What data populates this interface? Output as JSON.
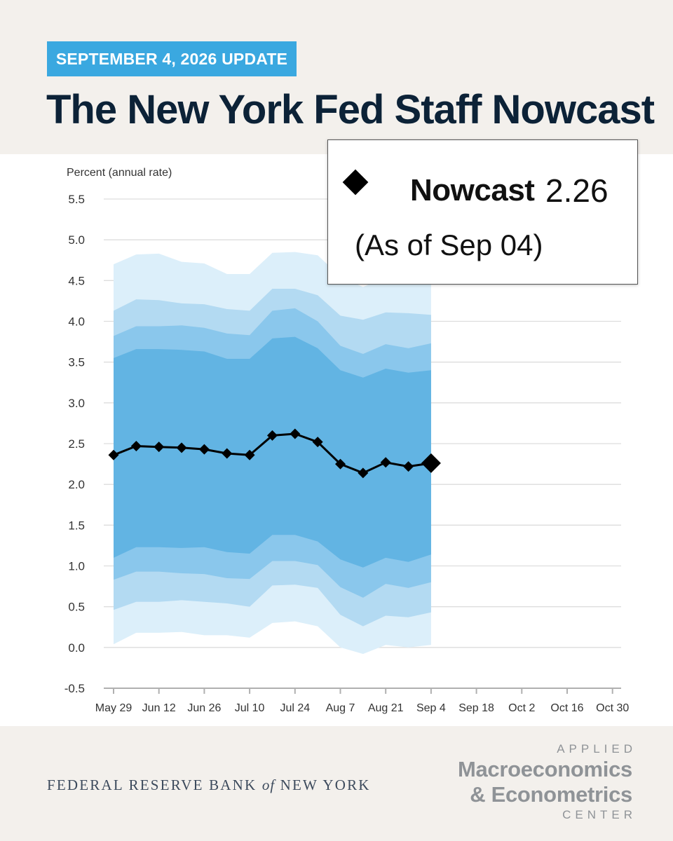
{
  "header": {
    "badge": "SEPTEMBER 4, 2026 UPDATE",
    "title": "The New York Fed Staff Nowcast"
  },
  "legend": {
    "series_label": "Nowcast",
    "value": "2.26",
    "as_of": "(As of Sep 04)"
  },
  "footer": {
    "bank_pre": "FEDERAL RESERVE BANK ",
    "bank_of": "of",
    "bank_post": " NEW YORK",
    "center_top": "APPLIED",
    "center_line1": "Macroeconomics",
    "center_line2": "& Econometrics",
    "center_bottom": "CENTER"
  },
  "colors": {
    "accent": "#3aa8e0",
    "title": "#0c2237",
    "band_inner": "#62b4e3",
    "band_mid": "#8ac7ec",
    "band_outer": "#b3daf2",
    "band_outermost": "#dceffa",
    "line": "#000000"
  },
  "chart_data": {
    "type": "line",
    "ylabel": "Percent (annual rate)",
    "ylim": [
      -0.5,
      5.5
    ],
    "yticks": [
      "5.5",
      "5.0",
      "4.5",
      "4.0",
      "3.5",
      "3.0",
      "2.5",
      "2.0",
      "1.5",
      "1.0",
      "0.5",
      "0.0",
      "-0.5"
    ],
    "ytick_values": [
      5.5,
      5.0,
      4.5,
      4.0,
      3.5,
      3.0,
      2.5,
      2.0,
      1.5,
      1.0,
      0.5,
      0.0,
      -0.5
    ],
    "xticks": [
      "May 29",
      "Jun 12",
      "Jun 26",
      "Jul 10",
      "Jul 24",
      "Aug 7",
      "Aug 21",
      "Sep 4",
      "Sep 18",
      "Oct 2",
      "Oct 16",
      "Oct 30"
    ],
    "x_domain": [
      "May 29",
      "Oct 30"
    ],
    "x": [
      "May 29",
      "Jun 5",
      "Jun 12",
      "Jun 19",
      "Jun 26",
      "Jul 3",
      "Jul 10",
      "Jul 17",
      "Jul 24",
      "Jul 31",
      "Aug 7",
      "Aug 14",
      "Aug 21",
      "Aug 28",
      "Sep 4"
    ],
    "series": [
      {
        "name": "Nowcast",
        "values": [
          2.36,
          2.47,
          2.46,
          2.45,
          2.43,
          2.38,
          2.36,
          2.6,
          2.62,
          2.52,
          2.25,
          2.14,
          2.27,
          2.22,
          2.26
        ]
      }
    ],
    "bands": {
      "upper_outer": [
        4.7,
        4.82,
        4.83,
        4.73,
        4.71,
        4.58,
        4.58,
        4.84,
        4.85,
        4.81,
        4.55,
        4.42,
        4.55,
        4.5,
        4.5
      ],
      "upper_mid": [
        4.13,
        4.27,
        4.26,
        4.22,
        4.21,
        4.15,
        4.13,
        4.4,
        4.4,
        4.32,
        4.07,
        4.02,
        4.11,
        4.1,
        4.08
      ],
      "upper_inner": [
        3.82,
        3.94,
        3.94,
        3.95,
        3.92,
        3.85,
        3.83,
        4.13,
        4.16,
        4.0,
        3.7,
        3.6,
        3.72,
        3.67,
        3.73
      ],
      "upper_core": [
        3.55,
        3.66,
        3.66,
        3.65,
        3.63,
        3.54,
        3.54,
        3.79,
        3.81,
        3.67,
        3.4,
        3.31,
        3.42,
        3.37,
        3.4
      ],
      "lower_core": [
        1.1,
        1.23,
        1.23,
        1.22,
        1.23,
        1.17,
        1.15,
        1.38,
        1.38,
        1.3,
        1.08,
        0.98,
        1.1,
        1.05,
        1.14
      ],
      "lower_inner": [
        0.83,
        0.93,
        0.93,
        0.91,
        0.9,
        0.85,
        0.84,
        1.06,
        1.06,
        1.01,
        0.74,
        0.61,
        0.78,
        0.73,
        0.8
      ],
      "lower_mid": [
        0.46,
        0.56,
        0.56,
        0.58,
        0.56,
        0.54,
        0.5,
        0.76,
        0.77,
        0.73,
        0.4,
        0.26,
        0.39,
        0.37,
        0.43
      ],
      "lower_outer": [
        0.04,
        0.18,
        0.18,
        0.19,
        0.15,
        0.15,
        0.12,
        0.3,
        0.32,
        0.26,
        0.0,
        -0.08,
        0.03,
        0.0,
        0.03
      ]
    },
    "grid": true
  }
}
